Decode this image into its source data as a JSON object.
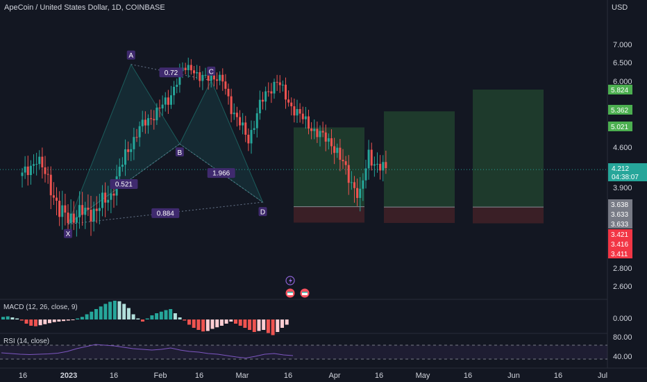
{
  "header": {
    "title": "ApeCoin / United States Dollar, 1D, COINBASE"
  },
  "axis": {
    "currency": "USD",
    "price_ticks": [
      "7.000",
      "6.500",
      "6.000",
      "4.600",
      "3.900",
      "2.800",
      "2.600"
    ],
    "date_ticks": [
      "16",
      "2023",
      "16",
      "Feb",
      "16",
      "Mar",
      "16",
      "Apr",
      "16",
      "May",
      "16",
      "Jun",
      "16",
      "Jul"
    ],
    "current_price": "4.212",
    "countdown": "04:38:07",
    "target_labels": [
      "5.824",
      "5.362",
      "5.021"
    ],
    "entry_labels": [
      "3.638",
      "3.633",
      "3.633"
    ],
    "stop_labels": [
      "3.421",
      "3.416",
      "3.411"
    ]
  },
  "harmonic": {
    "points": [
      "X",
      "A",
      "B",
      "C",
      "D"
    ],
    "ratios": [
      "0.72",
      "0.521",
      "1.966",
      "0.884"
    ]
  },
  "macd": {
    "label": "MACD (12, 26, close, 9)",
    "ticks": [
      "0.000"
    ]
  },
  "rsi": {
    "label": "RSI (14, close)",
    "ticks": [
      "80.00",
      "40.00"
    ]
  },
  "colors": {
    "background": "#131722",
    "up": "#26a69a",
    "down": "#ef5350",
    "pattern_fill": "#26a69a",
    "pattern_label_bg": "#3f2a6e",
    "target_green": "#4caf50",
    "entry_gray": "#787b86",
    "stop_red": "#f23645",
    "rsi_line": "#7e57c2"
  },
  "chart_data": {
    "type": "candlestick",
    "title": "ApeCoin / United States Dollar, 1D, COINBASE",
    "ylabel": "USD",
    "pattern_points": [
      {
        "label": "X",
        "date": "2023-01-01",
        "value": 3.4
      },
      {
        "label": "A",
        "date": "2023-01-23",
        "value": 6.45
      },
      {
        "label": "B",
        "date": "2023-02-09",
        "value": 4.67
      },
      {
        "label": "C",
        "date": "2023-02-20",
        "value": 6.02
      },
      {
        "label": "D",
        "date": "2023-03-10",
        "value": 3.7
      }
    ],
    "last_price": 4.212,
    "long_positions": [
      {
        "entry": 3.638,
        "target": 5.021,
        "stop": 3.421
      },
      {
        "entry": 3.633,
        "target": 5.362,
        "stop": 3.416
      },
      {
        "entry": 3.633,
        "target": 5.824,
        "stop": 3.411
      }
    ],
    "macd_series": [
      0.05,
      0.06,
      0.04,
      0.02,
      -0.02,
      -0.08,
      -0.12,
      -0.13,
      -0.11,
      -0.09,
      -0.07,
      -0.05,
      -0.04,
      -0.03,
      -0.02,
      -0.01,
      0.02,
      0.05,
      0.1,
      0.15,
      0.2,
      0.25,
      0.3,
      0.34,
      0.36,
      0.35,
      0.3,
      0.22,
      0.1,
      0.02,
      -0.04,
      0.02,
      0.08,
      0.12,
      0.15,
      0.18,
      0.2,
      0.12,
      0.04,
      -0.02,
      -0.1,
      -0.16,
      -0.2,
      -0.23,
      -0.22,
      -0.18,
      -0.15,
      -0.12,
      -0.08,
      -0.04,
      -0.08,
      -0.12,
      -0.16,
      -0.2,
      -0.24,
      -0.22,
      -0.2,
      -0.26,
      -0.3,
      -0.24,
      -0.16,
      -0.1
    ],
    "rsi_series": [
      48,
      46,
      44,
      43,
      44,
      45,
      47,
      52,
      60,
      66,
      72,
      70,
      68,
      64,
      60,
      58,
      56,
      58,
      62,
      56,
      52,
      50,
      46,
      44,
      40,
      36,
      33,
      38,
      44,
      46,
      42,
      40
    ],
    "rsi_levels": [
      70,
      30
    ]
  }
}
